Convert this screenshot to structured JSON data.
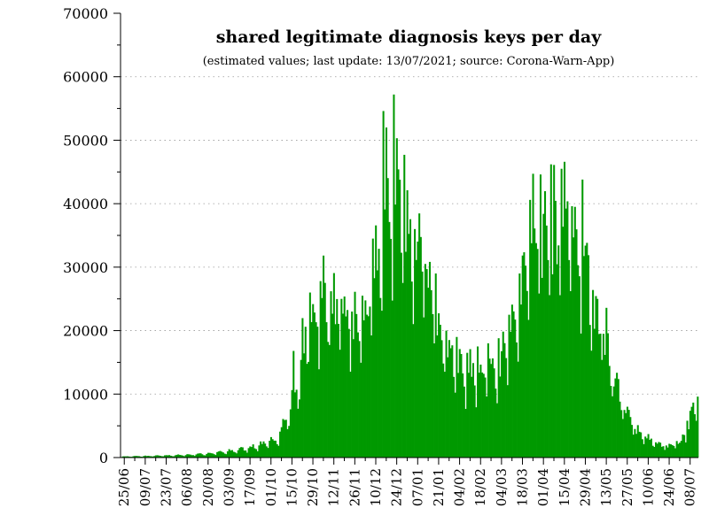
{
  "chart_data": {
    "type": "bar",
    "title": "shared legitimate diagnosis keys per day",
    "subtitle": "(estimated values; last update: 13/07/2021; source: Corona-Warn-App)",
    "xlabel": "",
    "ylabel": "",
    "ylim": [
      0,
      70000
    ],
    "yticks": [
      "0",
      "10000",
      "20000",
      "30000",
      "40000",
      "50000",
      "60000",
      "70000"
    ],
    "xticks": [
      "25/06",
      "09/07",
      "23/07",
      "06/08",
      "20/08",
      "03/09",
      "17/09",
      "01/10",
      "15/10",
      "29/10",
      "12/11",
      "26/11",
      "10/12",
      "24/12",
      "07/01",
      "21/01",
      "04/02",
      "18/02",
      "04/03",
      "18/03",
      "01/04",
      "15/04",
      "29/04",
      "13/05",
      "27/05",
      "10/06",
      "24/06",
      "08/07"
    ],
    "start_date": "2020-06-23",
    "end_date": "2021-07-13",
    "bar_color": "#009900",
    "grid": "horizontal dotted",
    "legend": "none",
    "anchor_values": [
      [
        "2020-06-23",
        150
      ],
      [
        "2020-07-09",
        220
      ],
      [
        "2020-07-23",
        300
      ],
      [
        "2020-08-06",
        400
      ],
      [
        "2020-08-20",
        600
      ],
      [
        "2020-09-03",
        900
      ],
      [
        "2020-09-17",
        1500
      ],
      [
        "2020-10-01",
        2300
      ],
      [
        "2020-10-08",
        4000
      ],
      [
        "2020-10-15",
        8500
      ],
      [
        "2020-10-22",
        15000
      ],
      [
        "2020-10-29",
        20000
      ],
      [
        "2020-11-05",
        23000
      ],
      [
        "2020-11-12",
        20000
      ],
      [
        "2020-11-19",
        20000
      ],
      [
        "2020-11-26",
        18000
      ],
      [
        "2020-12-03",
        19500
      ],
      [
        "2020-12-10",
        25000
      ],
      [
        "2020-12-17",
        36000
      ],
      [
        "2020-12-24",
        38000
      ],
      [
        "2020-12-31",
        32000
      ],
      [
        "2021-01-07",
        30000
      ],
      [
        "2021-01-14",
        24000
      ],
      [
        "2021-01-21",
        20000
      ],
      [
        "2021-01-28",
        16000
      ],
      [
        "2021-02-04",
        12500
      ],
      [
        "2021-02-11",
        11500
      ],
      [
        "2021-02-18",
        12500
      ],
      [
        "2021-02-25",
        13000
      ],
      [
        "2021-03-04",
        14000
      ],
      [
        "2021-03-11",
        17000
      ],
      [
        "2021-03-18",
        24000
      ],
      [
        "2021-03-25",
        30000
      ],
      [
        "2021-04-01",
        31000
      ],
      [
        "2021-04-08",
        30000
      ],
      [
        "2021-04-15",
        33000
      ],
      [
        "2021-04-22",
        31000
      ],
      [
        "2021-04-29",
        27000
      ],
      [
        "2021-05-06",
        22000
      ],
      [
        "2021-05-13",
        16000
      ],
      [
        "2021-05-20",
        10000
      ],
      [
        "2021-05-27",
        6000
      ],
      [
        "2021-06-03",
        3800
      ],
      [
        "2021-06-10",
        2600
      ],
      [
        "2021-06-17",
        1800
      ],
      [
        "2021-06-24",
        1500
      ],
      [
        "2021-07-01",
        2000
      ],
      [
        "2021-07-08",
        5000
      ],
      [
        "2021-07-13",
        9500
      ]
    ],
    "peaks": [
      [
        "2020-10-16",
        16800
      ],
      [
        "2020-10-27",
        26000
      ],
      [
        "2020-11-03",
        27800
      ],
      [
        "2020-11-10",
        26200
      ],
      [
        "2020-11-17",
        25000
      ],
      [
        "2020-11-24",
        23000
      ],
      [
        "2020-12-01",
        25500
      ],
      [
        "2020-12-08",
        34500
      ],
      [
        "2020-12-15",
        54600
      ],
      [
        "2020-12-17",
        52000
      ],
      [
        "2020-12-22",
        57200
      ],
      [
        "2020-12-29",
        47700
      ],
      [
        "2021-01-05",
        36000
      ],
      [
        "2021-01-12",
        30500
      ],
      [
        "2021-01-19",
        29000
      ],
      [
        "2021-01-26",
        20000
      ],
      [
        "2021-02-02",
        19000
      ],
      [
        "2021-02-09",
        16500
      ],
      [
        "2021-02-16",
        17500
      ],
      [
        "2021-02-23",
        18000
      ],
      [
        "2021-03-02",
        18800
      ],
      [
        "2021-03-09",
        22500
      ],
      [
        "2021-03-16",
        29000
      ],
      [
        "2021-03-23",
        40600
      ],
      [
        "2021-03-30",
        44600
      ],
      [
        "2021-04-06",
        46200
      ],
      [
        "2021-04-08",
        46100
      ],
      [
        "2021-04-13",
        45500
      ],
      [
        "2021-04-15",
        46600
      ],
      [
        "2021-04-20",
        39600
      ],
      [
        "2021-04-27",
        43800
      ],
      [
        "2021-05-04",
        26400
      ],
      [
        "2021-05-11",
        19500
      ],
      [
        "2021-05-18",
        11200
      ],
      [
        "2021-05-25",
        7500
      ],
      [
        "2021-06-01",
        4500
      ],
      [
        "2021-06-08",
        3300
      ],
      [
        "2021-06-15",
        2400
      ],
      [
        "2021-06-22",
        1900
      ],
      [
        "2021-06-29",
        2600
      ],
      [
        "2021-07-06",
        5800
      ],
      [
        "2021-07-13",
        9600
      ]
    ]
  }
}
